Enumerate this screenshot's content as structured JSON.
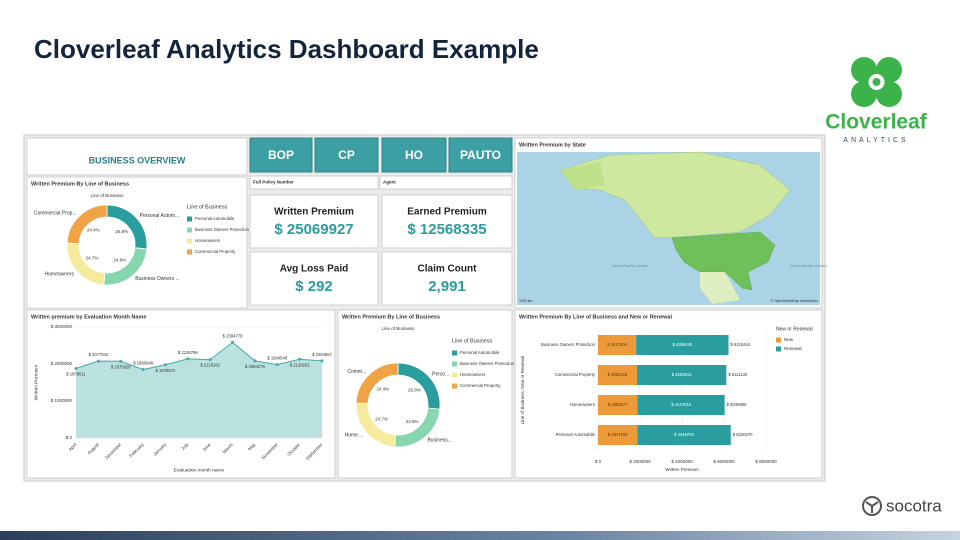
{
  "title": "Cloverleaf Analytics Dashboard Example",
  "logo": {
    "name": "Cloverleaf",
    "tagline": "ANALYTICS"
  },
  "footer_logo": "socotra",
  "overview": "BUSINESS OVERVIEW",
  "tabs": [
    "BOP",
    "CP",
    "HO",
    "PAUTO"
  ],
  "filters": [
    "Full Policy Number",
    "Agent"
  ],
  "kpis": [
    {
      "label": "Written Premium",
      "value": "$ 25069927"
    },
    {
      "label": "Earned Premium",
      "value": "$ 12568335"
    },
    {
      "label": "Avg Loss Paid",
      "value": "$ 292"
    },
    {
      "label": "Claim Count",
      "value": "2,991"
    }
  ],
  "donut1": {
    "type": "pie",
    "title": "Written Premium By Line of Business",
    "subtitle": "Line of Business",
    "legend_title": "Line of Business",
    "categories": [
      "Personal Automobile",
      "Business Owners Protection",
      "Homeowners",
      "Commercial Property"
    ],
    "slice_labels": [
      "Personal Autom...",
      "Business Owners ...",
      "Homeowners",
      "Commercial Prop..."
    ],
    "values": [
      26.8,
      24.8,
      24.7,
      24.4
    ],
    "value_labels": [
      "26.8%",
      "24.8%",
      "24.7%",
      "24.4%"
    ],
    "colors": [
      "#2a9d9f",
      "#86d6ae",
      "#f6ea9c",
      "#f0a344"
    ]
  },
  "donut2": {
    "type": "pie",
    "title": "Written Premium By Line of Business",
    "subtitle": "Line of Business",
    "legend_title": "Line of Business",
    "categories": [
      "Personal Automobile",
      "Business Owners Protection",
      "Homeowners",
      "Commercial Property"
    ],
    "slice_labels": [
      "Perso...",
      "Business...",
      "Home ...",
      "Comm..."
    ],
    "values": [
      26.8,
      24.8,
      24.7,
      24.4
    ],
    "value_labels": [
      "26.8%",
      "24.8%",
      "24.7%",
      "24.4%"
    ],
    "colors": [
      "#2a9d9f",
      "#86d6ae",
      "#f6ea9c",
      "#f0a344"
    ]
  },
  "map": {
    "title": "Written Premium by State",
    "labels": [
      "North Pacific Ocean",
      "North Atlantic Ocean"
    ],
    "scale": "1000 km",
    "credit": "© OpenStreetMap contributors"
  },
  "line": {
    "type": "area",
    "title": "Written premium by Evaluation Month Name",
    "x_label": "Evaluation month name",
    "y_label": "Written Premium",
    "categories": [
      "April",
      "August",
      "December",
      "February",
      "January",
      "July",
      "June",
      "March",
      "May",
      "November",
      "October",
      "September"
    ],
    "values": [
      1878011,
      2077942,
      2075828,
      1850048,
      1978572,
      2138798,
      2118182,
      2584778,
      2084276,
      1984548,
      2128282,
      2084557
    ],
    "value_labels": [
      "$ 1878011",
      "$ 2077942",
      "$ 2075828",
      "$ 1850048",
      "$ 1978572",
      "$ 2138798",
      "$ 2118182",
      "$ 2584778",
      "$ 2084276",
      "$ 1984548",
      "$ 2128282",
      "$ 2084557"
    ],
    "color": "#4aa9a9",
    "ylim": [
      0,
      3000000
    ],
    "yticks": [
      {
        "value": 0,
        "label": "$ 0"
      },
      {
        "value": 1000000,
        "label": "$ 1000000"
      },
      {
        "value": 2000000,
        "label": "$ 2000000"
      },
      {
        "value": 3000000,
        "label": "$ 3000000"
      }
    ]
  },
  "bars": {
    "type": "stacked-bar",
    "title": "Written Premium By Line of Business and New or Renewal",
    "x_label": "Written Premium",
    "y_label": "Line of Business, New or Renewal",
    "legend_title": "New or Renewal",
    "categories": [
      "Business Owners Protection",
      "Commercial Property",
      "Homeowners",
      "Personal Automobile"
    ],
    "series": [
      {
        "name": "New",
        "color": "#ec9a3a",
        "values": [
          1817004,
          1854318,
          1882877,
          1871768
        ],
        "value_labels": [
          "$ 1817004",
          "$ 1854318",
          "$ 1882877",
          "$ 1871768"
        ]
      },
      {
        "name": "Renewal",
        "color": "#2a9d9f",
        "values": [
          4398440,
          4256812,
          4147818,
          4448702
        ],
        "value_labels": [
          "$ 4398440",
          "$ 4256812",
          "$ 4147818",
          "$ 4448702"
        ]
      }
    ],
    "total_labels": [
      "$ 6215444",
      "$ 6111130",
      "$ 6030695",
      "$ 6320470"
    ],
    "xlim": [
      0,
      8000000
    ],
    "xticks": [
      {
        "value": 0,
        "label": "$ 0"
      },
      {
        "value": 2000000,
        "label": "$ 2000000"
      },
      {
        "value": 4000000,
        "label": "$ 4000000"
      },
      {
        "value": 6000000,
        "label": "$ 6000000"
      },
      {
        "value": 8000000,
        "label": "$ 8000000"
      }
    ]
  }
}
